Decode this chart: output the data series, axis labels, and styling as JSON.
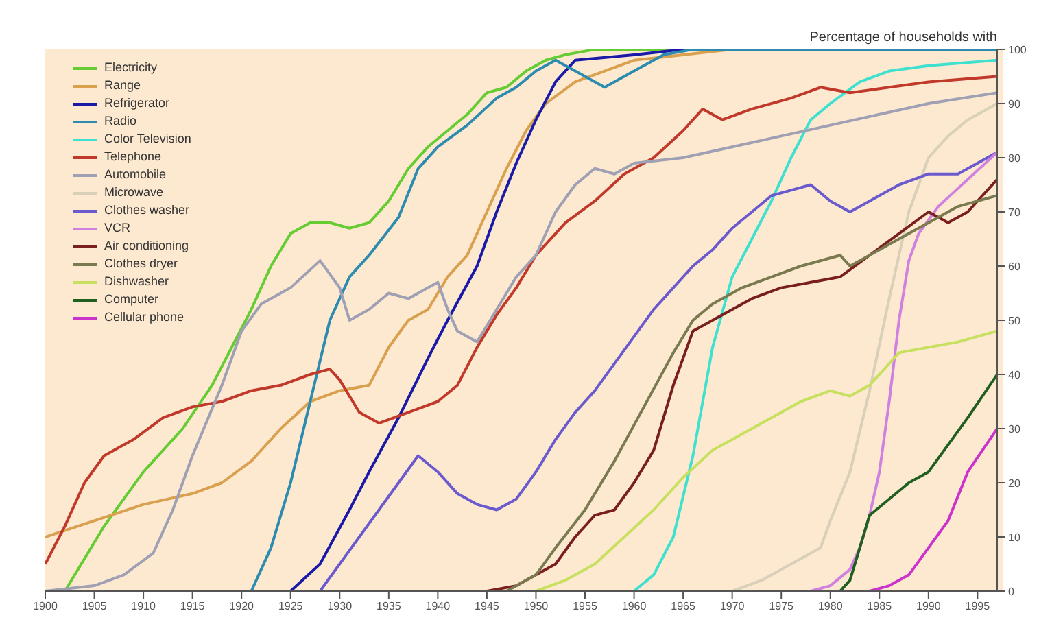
{
  "chart_data": {
    "type": "line",
    "title": "Percentage of households with",
    "legend": "top left",
    "grid": false,
    "marker": "none",
    "line_style": "solid",
    "xlim": [
      1900,
      1997
    ],
    "xticks": [
      1900,
      1905,
      1910,
      1915,
      1920,
      1925,
      1930,
      1935,
      1940,
      1945,
      1950,
      1955,
      1960,
      1965,
      1970,
      1975,
      1980,
      1985,
      1990,
      1995
    ],
    "ylim": [
      0,
      100
    ],
    "yticks": [
      0,
      10,
      20,
      30,
      40,
      50,
      60,
      70,
      80,
      90,
      100
    ],
    "series": [
      {
        "name": "Electricity",
        "color": "#66cc33",
        "x": [
          1902,
          1906,
          1910,
          1914,
          1917,
          1919,
          1921,
          1923,
          1925,
          1927,
          1929,
          1931,
          1933,
          1935,
          1937,
          1939,
          1941,
          1943,
          1945,
          1947,
          1949,
          1951,
          1953,
          1956,
          1997
        ],
        "values": [
          0,
          12,
          22,
          30,
          38,
          45,
          52,
          60,
          66,
          68,
          68,
          67,
          68,
          72,
          78,
          82,
          85,
          88,
          92,
          93,
          96,
          98,
          99,
          100,
          100
        ]
      },
      {
        "name": "Range",
        "color": "#d9a050",
        "x": [
          1900,
          1905,
          1910,
          1915,
          1918,
          1921,
          1924,
          1927,
          1930,
          1933,
          1935,
          1937,
          1939,
          1941,
          1943,
          1945,
          1947,
          1949,
          1951,
          1954,
          1957,
          1960,
          1965,
          1970,
          1997
        ],
        "values": [
          10,
          13,
          16,
          18,
          20,
          24,
          30,
          35,
          37,
          38,
          45,
          50,
          52,
          58,
          62,
          70,
          78,
          85,
          90,
          94,
          96,
          98,
          99,
          100,
          100
        ]
      },
      {
        "name": "Refrigerator",
        "color": "#1a1aa8",
        "x": [
          1925,
          1928,
          1931,
          1933,
          1936,
          1939,
          1941,
          1944,
          1946,
          1948,
          1950,
          1952,
          1954,
          1960,
          1965,
          1997
        ],
        "values": [
          0,
          5,
          15,
          22,
          32,
          43,
          50,
          60,
          70,
          79,
          87,
          94,
          98,
          99,
          100,
          100
        ]
      },
      {
        "name": "Radio",
        "color": "#2e8bb0",
        "x": [
          1921,
          1923,
          1925,
          1927,
          1929,
          1931,
          1933,
          1936,
          1938,
          1940,
          1943,
          1946,
          1948,
          1950,
          1952,
          1954,
          1957,
          1960,
          1963,
          1966,
          1997
        ],
        "values": [
          0,
          8,
          20,
          35,
          50,
          58,
          62,
          69,
          78,
          82,
          86,
          91,
          93,
          96,
          98,
          96,
          93,
          96,
          99,
          100,
          100
        ]
      },
      {
        "name": "Color Television",
        "color": "#40e0d0",
        "x": [
          1960,
          1962,
          1964,
          1966,
          1968,
          1970,
          1972,
          1974,
          1976,
          1978,
          1980,
          1983,
          1986,
          1990,
          1997
        ],
        "values": [
          0,
          3,
          10,
          25,
          45,
          58,
          65,
          72,
          80,
          87,
          90,
          94,
          96,
          97,
          98
        ]
      },
      {
        "name": "Telephone",
        "color": "#c0392b",
        "x": [
          1900,
          1902,
          1904,
          1906,
          1909,
          1912,
          1915,
          1918,
          1921,
          1924,
          1927,
          1929,
          1930,
          1932,
          1934,
          1937,
          1940,
          1942,
          1944,
          1946,
          1948,
          1950,
          1953,
          1956,
          1959,
          1962,
          1965,
          1967,
          1969,
          1972,
          1976,
          1979,
          1982,
          1986,
          1990,
          1997
        ],
        "values": [
          5,
          12,
          20,
          25,
          28,
          32,
          34,
          35,
          37,
          38,
          40,
          41,
          39,
          33,
          31,
          33,
          35,
          38,
          45,
          51,
          56,
          62,
          68,
          72,
          77,
          80,
          85,
          89,
          87,
          89,
          91,
          93,
          92,
          93,
          94,
          95
        ]
      },
      {
        "name": "Automobile",
        "color": "#a0a0b4",
        "x": [
          1900,
          1905,
          1908,
          1911,
          1913,
          1915,
          1918,
          1920,
          1922,
          1925,
          1928,
          1930,
          1931,
          1933,
          1935,
          1937,
          1939,
          1940,
          1941,
          1942,
          1944,
          1946,
          1948,
          1950,
          1952,
          1954,
          1956,
          1958,
          1960,
          1965,
          1970,
          1975,
          1980,
          1985,
          1990,
          1997
        ],
        "values": [
          0,
          1,
          3,
          7,
          15,
          25,
          38,
          48,
          53,
          56,
          61,
          56,
          50,
          52,
          55,
          54,
          56,
          57,
          52,
          48,
          46,
          52,
          58,
          62,
          70,
          75,
          78,
          77,
          79,
          80,
          82,
          84,
          86,
          88,
          90,
          92
        ]
      },
      {
        "name": "Microwave",
        "color": "#d8d0b8",
        "x": [
          1970,
          1973,
          1976,
          1979,
          1980,
          1982,
          1984,
          1986,
          1988,
          1990,
          1992,
          1994,
          1997
        ],
        "values": [
          0,
          2,
          5,
          8,
          13,
          22,
          37,
          54,
          70,
          80,
          84,
          87,
          90
        ]
      },
      {
        "name": "Clothes washer",
        "color": "#6a5acd",
        "x": [
          1928,
          1930,
          1932,
          1934,
          1936,
          1938,
          1940,
          1942,
          1944,
          1946,
          1948,
          1950,
          1952,
          1954,
          1956,
          1958,
          1960,
          1962,
          1964,
          1966,
          1968,
          1970,
          1972,
          1974,
          1976,
          1978,
          1980,
          1982,
          1984,
          1987,
          1990,
          1993,
          1997
        ],
        "values": [
          0,
          5,
          10,
          15,
          20,
          25,
          22,
          18,
          16,
          15,
          17,
          22,
          28,
          33,
          37,
          42,
          47,
          52,
          56,
          60,
          63,
          67,
          70,
          73,
          74,
          75,
          72,
          70,
          72,
          75,
          77,
          77,
          81
        ]
      },
      {
        "name": "VCR",
        "color": "#d080e0",
        "x": [
          1978,
          1980,
          1982,
          1983,
          1984,
          1985,
          1986,
          1987,
          1988,
          1989,
          1991,
          1994,
          1997
        ],
        "values": [
          0,
          1,
          4,
          8,
          14,
          22,
          35,
          50,
          61,
          66,
          71,
          76,
          81
        ]
      },
      {
        "name": "Air conditioning",
        "color": "#7a1f1f",
        "x": [
          1945,
          1948,
          1950,
          1952,
          1954,
          1956,
          1958,
          1960,
          1962,
          1964,
          1966,
          1968,
          1970,
          1972,
          1975,
          1978,
          1981,
          1984,
          1987,
          1990,
          1992,
          1994,
          1997
        ],
        "values": [
          0,
          1,
          3,
          5,
          10,
          14,
          15,
          20,
          26,
          38,
          48,
          50,
          52,
          54,
          56,
          57,
          58,
          62,
          66,
          70,
          68,
          70,
          76
        ]
      },
      {
        "name": "Clothes dryer",
        "color": "#7a7a50",
        "x": [
          1947,
          1950,
          1952,
          1955,
          1958,
          1961,
          1964,
          1966,
          1968,
          1971,
          1974,
          1977,
          1981,
          1982,
          1985,
          1988,
          1991,
          1993,
          1997
        ],
        "values": [
          0,
          3,
          8,
          15,
          24,
          34,
          44,
          50,
          53,
          56,
          58,
          60,
          62,
          60,
          63,
          66,
          69,
          71,
          73
        ]
      },
      {
        "name": "Dishwasher",
        "color": "#c8e060",
        "x": [
          1950,
          1953,
          1956,
          1959,
          1962,
          1965,
          1968,
          1971,
          1974,
          1977,
          1980,
          1982,
          1984,
          1987,
          1990,
          1993,
          1997
        ],
        "values": [
          0,
          2,
          5,
          10,
          15,
          21,
          26,
          29,
          32,
          35,
          37,
          36,
          38,
          44,
          45,
          46,
          48
        ]
      },
      {
        "name": "Computer",
        "color": "#1f5f1f",
        "x": [
          1978,
          1981,
          1982,
          1983,
          1984,
          1986,
          1988,
          1990,
          1992,
          1994,
          1997
        ],
        "values": [
          0,
          0,
          2,
          8,
          14,
          17,
          20,
          22,
          27,
          32,
          40
        ]
      },
      {
        "name": "Cellular phone",
        "color": "#cc33cc",
        "x": [
          1984,
          1986,
          1988,
          1990,
          1992,
          1994,
          1997
        ],
        "values": [
          0,
          1,
          3,
          8,
          13,
          22,
          30
        ]
      }
    ]
  }
}
